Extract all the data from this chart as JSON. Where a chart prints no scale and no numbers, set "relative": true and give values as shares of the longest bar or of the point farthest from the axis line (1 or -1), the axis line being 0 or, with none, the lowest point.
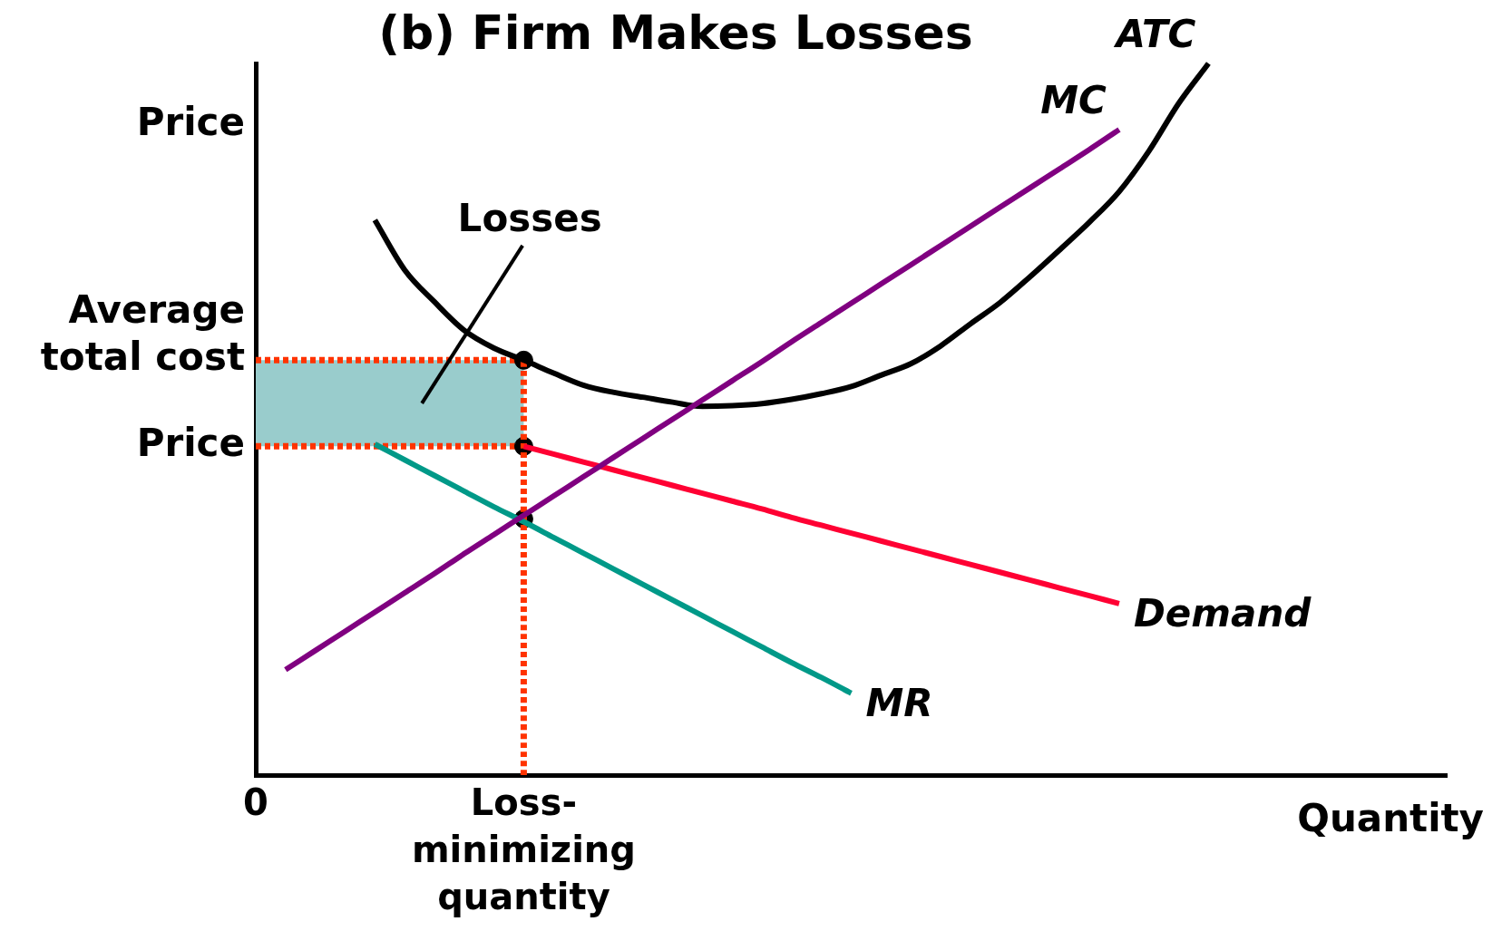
{
  "chart_data": {
    "type": "line",
    "title": "(b) Firm Makes Losses",
    "xlabel": "Quantity",
    "ylabel": "Price",
    "relative": true,
    "tick_labels": "x",
    "legend": false,
    "marker": "none",
    "line_style": "solid",
    "categories": [
      "0",
      null,
      null,
      null,
      null,
      null,
      null,
      null,
      null,
      "Loss-minimizing quantity",
      null,
      null,
      null,
      null,
      null,
      null,
      null,
      null,
      null,
      null,
      null,
      null,
      null,
      null,
      null,
      null,
      null,
      null,
      null,
      null,
      null,
      null,
      null,
      null,
      null,
      null,
      null,
      null,
      null,
      null,
      null
    ],
    "series": [
      {
        "name": "MC",
        "color": "#800080",
        "values": [
          null,
          0.148,
          0.175,
          0.202,
          0.229,
          0.256,
          0.283,
          0.311,
          0.338,
          0.365,
          0.392,
          0.419,
          0.446,
          0.473,
          0.5,
          0.527,
          0.554,
          0.581,
          0.609,
          0.636,
          0.663,
          0.69,
          0.717,
          0.744,
          0.771,
          0.798,
          0.825,
          0.852,
          0.879,
          0.907,
          null,
          null,
          null,
          null,
          null,
          null,
          null,
          null,
          null,
          null,
          null
        ]
      },
      {
        "name": "ATC",
        "color": "#000000",
        "values": [
          null,
          null,
          null,
          null,
          0.78,
          0.71,
          0.665,
          0.625,
          0.6,
          0.583,
          0.565,
          0.548,
          0.538,
          0.531,
          0.524,
          0.518,
          0.519,
          0.522,
          0.528,
          0.536,
          0.546,
          0.562,
          0.578,
          0.603,
          0.634,
          0.664,
          0.7,
          0.738,
          0.777,
          0.82,
          0.877,
          0.944,
          1.0,
          null,
          null,
          null,
          null,
          null,
          null,
          null,
          null
        ]
      },
      {
        "name": "Demand",
        "color": "#ff0033",
        "values": [
          null,
          null,
          null,
          null,
          null,
          null,
          null,
          null,
          null,
          0.462,
          0.451,
          0.44,
          0.429,
          0.418,
          0.407,
          0.396,
          0.385,
          0.374,
          0.362,
          0.351,
          0.34,
          0.329,
          0.318,
          0.307,
          0.296,
          0.285,
          0.274,
          0.263,
          0.252,
          0.241,
          null,
          null,
          null,
          null,
          null,
          null,
          null,
          null,
          null,
          null,
          null
        ]
      },
      {
        "name": "MR",
        "color": "#009988",
        "values": [
          null,
          null,
          null,
          null,
          0.465,
          0.443,
          0.421,
          0.399,
          0.377,
          0.356,
          0.334,
          0.312,
          0.29,
          0.268,
          0.246,
          0.224,
          0.202,
          0.18,
          0.158,
          0.137,
          0.115,
          null,
          null,
          null,
          null,
          null,
          null,
          null,
          null,
          null,
          null,
          null,
          null,
          null,
          null,
          null,
          null,
          null,
          null,
          null,
          null
        ]
      },
      {
        "type": "line",
        "color": "#ff3300",
        "line_style": "dotted",
        "x": [
          "Loss-minimizing quantity",
          "Loss-minimizing quantity"
        ],
        "values": [
          0,
          0.583
        ]
      },
      {
        "type": "scatter",
        "marker": "circle",
        "color": "#000000",
        "x": [
          "Loss-minimizing quantity",
          "Loss-minimizing quantity",
          "Loss-minimizing quantity"
        ],
        "values": [
          0.583,
          0.462,
          0.36
        ]
      }
    ],
    "bands": [
      {
        "axis": "y",
        "from": 0.462,
        "to": 0.583,
        "label": "Losses",
        "color": "#99cccc"
      }
    ],
    "ref_lines": [
      {
        "axis": "y",
        "value": 0.583,
        "label": "Average total cost",
        "color": "#ff3300",
        "line_style": "dotted"
      },
      {
        "axis": "y",
        "value": 0.462,
        "label": "Price",
        "color": "#ff3300",
        "line_style": "dotted"
      }
    ]
  }
}
